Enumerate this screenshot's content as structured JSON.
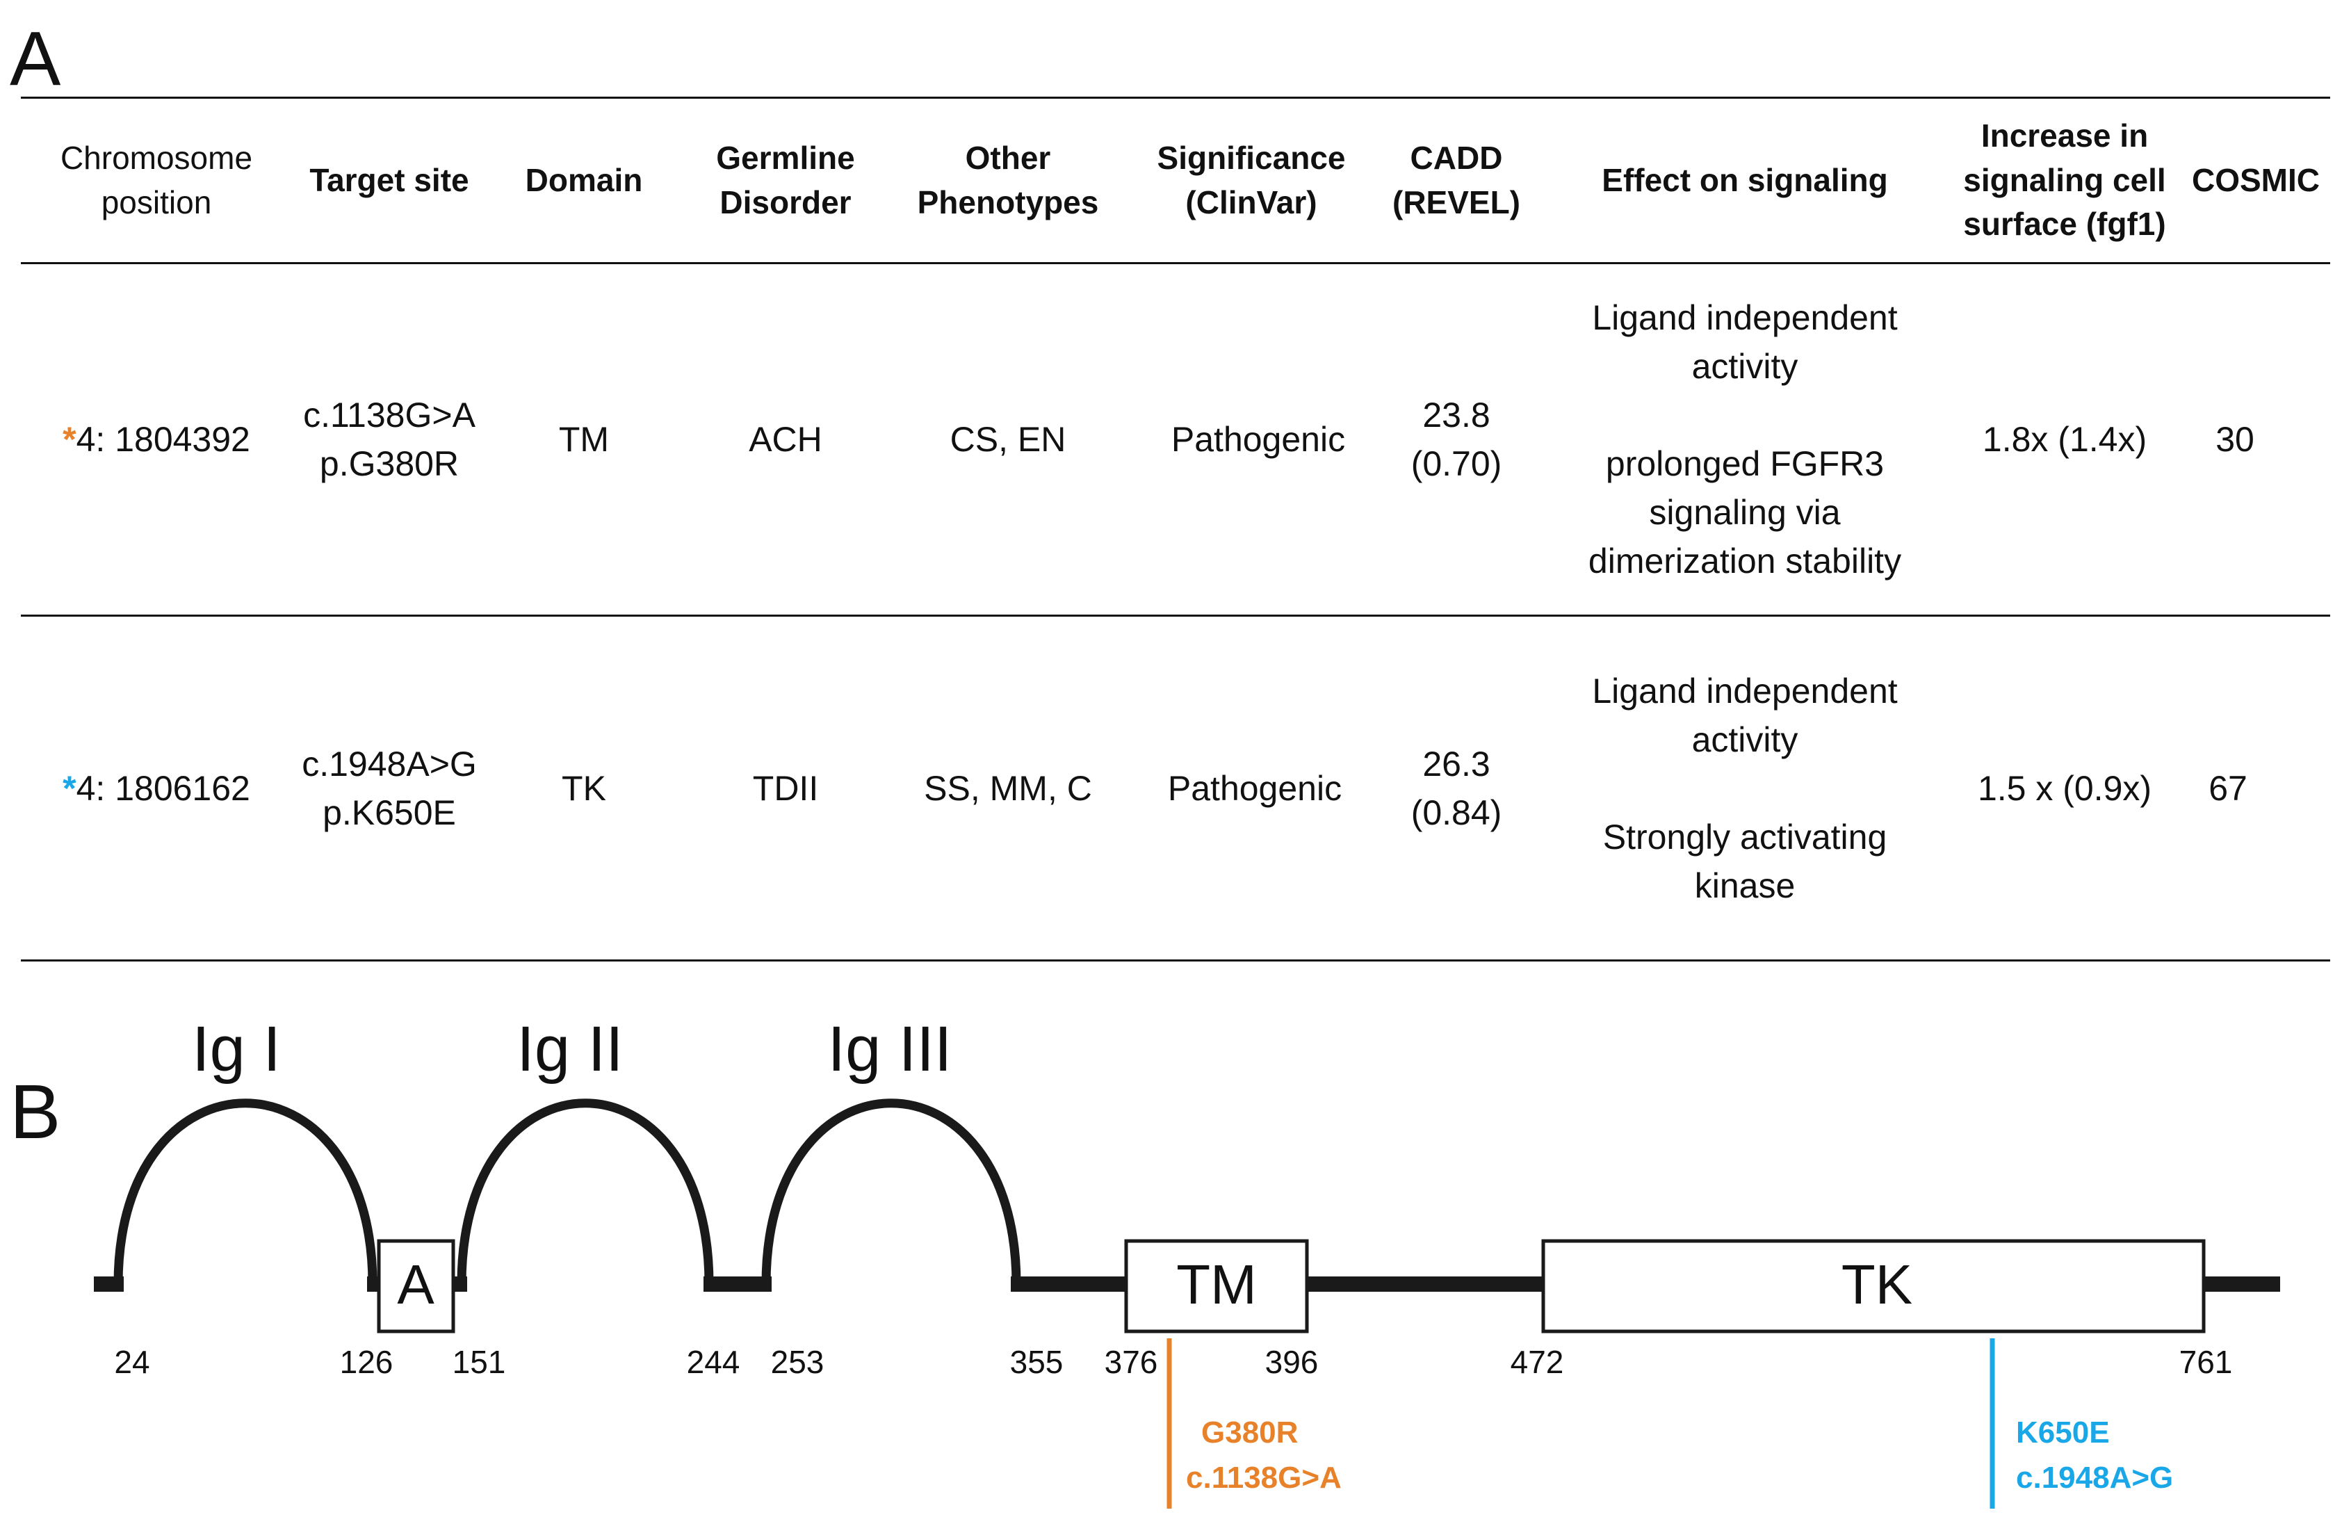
{
  "panel_labels": {
    "a": "A",
    "b": "B"
  },
  "table": {
    "headers": [
      "Chromosome\nposition",
      "Target site",
      "Domain",
      "Germline\nDisorder",
      "Other\nPhenotypes",
      "Significance\n(ClinVar)",
      "CADD\n(REVEL)",
      "Effect on signaling",
      "Increase in\nsignaling cell\nsurface (fgf1)",
      "COSMIC"
    ],
    "rows": [
      {
        "star": "*",
        "position": "4: 1804392",
        "target": "c.1138G>A\np.G380R",
        "domain": "TM",
        "germline": "ACH",
        "phenotypes": "CS, EN",
        "significance": "Pathogenic",
        "cadd": "23.8\n(0.70)",
        "effect": "Ligand independent\nactivity\n\nprolonged FGFR3\nsignaling via\ndimerization stability",
        "increase": "1.8x (1.4x)",
        "cosmic": "30"
      },
      {
        "star": "*",
        "position": "4: 1806162",
        "target": "c.1948A>G\np.K650E",
        "domain": "TK",
        "germline": "TDII",
        "phenotypes": "SS, MM, C",
        "significance": "Pathogenic",
        "cadd": "26.3\n(0.84)",
        "effect": "Ligand independent\nactivity\n\nStrongly activating\nkinase",
        "increase": "1.5 x (0.9x)",
        "cosmic": "67"
      }
    ]
  },
  "protein": {
    "ig_labels": [
      "Ig I",
      "Ig II",
      "Ig III"
    ],
    "boxes": {
      "acid": "A",
      "tm": "TM",
      "tk": "TK"
    },
    "positions": [
      "24",
      "126",
      "151",
      "244",
      "253",
      "355",
      "376",
      "396",
      "472",
      "761"
    ],
    "mutations": [
      {
        "name": "G380R",
        "cdna": "c.1138G>A",
        "color": "#E8822A"
      },
      {
        "name": "K650E",
        "cdna": "c.1948A>G",
        "color": "#1AA7E8"
      }
    ]
  },
  "colors": {
    "orange": "#E8822A",
    "blue": "#1AA7E8",
    "line": "#1a1a1a"
  }
}
